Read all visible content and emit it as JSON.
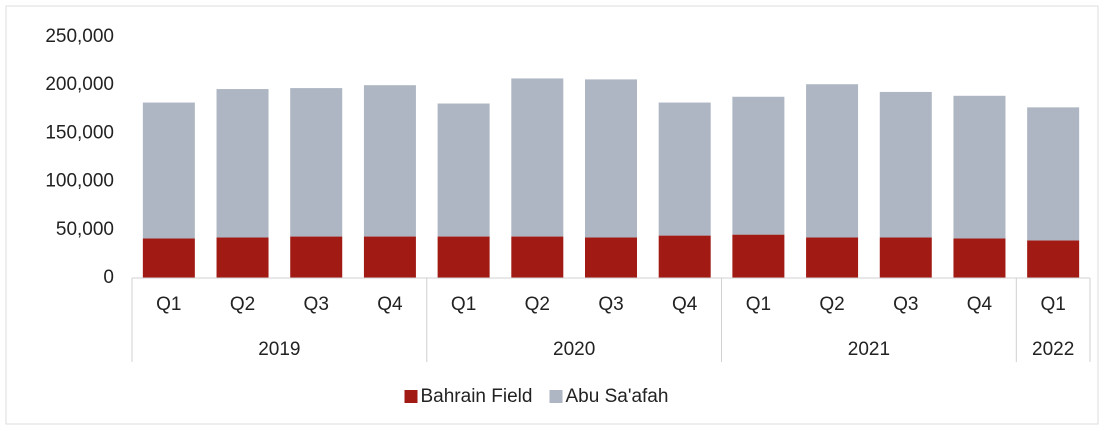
{
  "chart_data": {
    "type": "stacked_bar",
    "groups": [
      {
        "label": "2019",
        "categories": [
          "Q1",
          "Q2",
          "Q3",
          "Q4"
        ]
      },
      {
        "label": "2020",
        "categories": [
          "Q1",
          "Q2",
          "Q3",
          "Q4"
        ]
      },
      {
        "label": "2021",
        "categories": [
          "Q1",
          "Q2",
          "Q3",
          "Q4"
        ]
      },
      {
        "label": "2022",
        "categories": [
          "Q1"
        ]
      }
    ],
    "series": [
      {
        "name": "Bahrain Field",
        "color": "#a11a14",
        "values": [
          41000,
          42000,
          43000,
          43000,
          43000,
          43000,
          42000,
          44000,
          45000,
          42000,
          42000,
          41000,
          39000
        ]
      },
      {
        "name": "Abu Sa'afah",
        "color": "#adb6c2",
        "values": [
          141000,
          154000,
          154000,
          157000,
          138000,
          164000,
          164000,
          138000,
          143000,
          159000,
          151000,
          148000,
          138000
        ]
      }
    ],
    "ylim": [
      0,
      250000
    ],
    "yticks": [
      0,
      {
        "value": 50000,
        "label": "50,000"
      },
      {
        "value": 100000,
        "label": "100,000"
      },
      {
        "value": 150000,
        "label": "150,000"
      },
      {
        "value": 200000,
        "label": "200,000"
      },
      {
        "value": 250000,
        "label": "250,000"
      }
    ],
    "grid": false,
    "legend": "bottom"
  }
}
